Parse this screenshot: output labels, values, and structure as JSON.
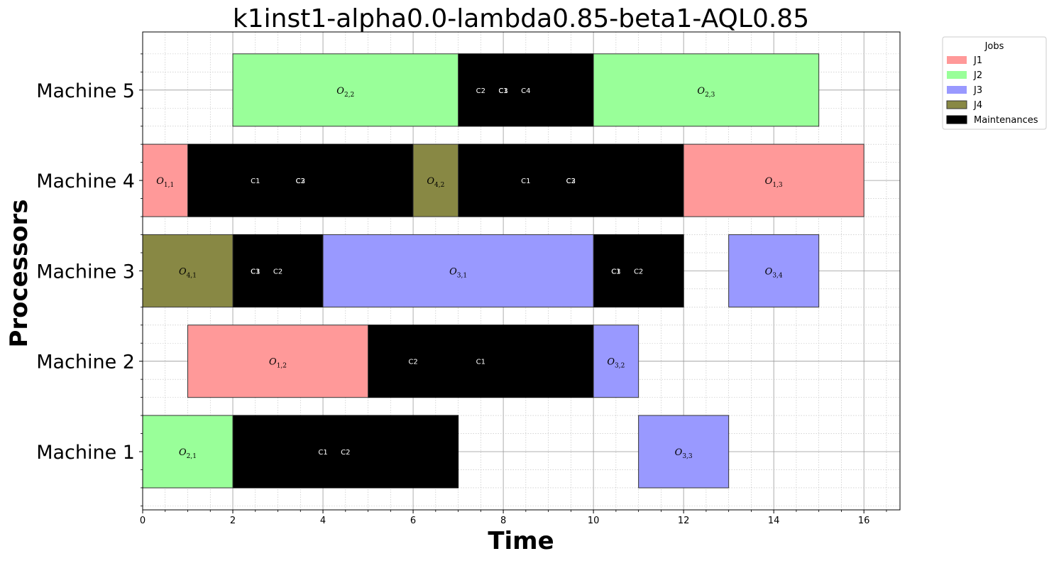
{
  "chart_data": {
    "type": "gantt",
    "title": "k1inst1-alpha0.0-lambda0.85-beta1-AQL0.85",
    "xlabel": "Time",
    "ylabel": "Processors",
    "xlim": [
      0,
      16.8
    ],
    "xticks": [
      "0",
      "2",
      "4",
      "6",
      "8",
      "10",
      "12",
      "14",
      "16"
    ],
    "grid": "major and minor",
    "legend_position": "outside-top-right",
    "machines": [
      "Machine 1",
      "Machine 2",
      "Machine 3",
      "Machine 4",
      "Machine 5"
    ],
    "legend": {
      "title": "Jobs",
      "items": [
        {
          "label": "J1",
          "color": "#ff9999"
        },
        {
          "label": "J2",
          "color": "#99ff99"
        },
        {
          "label": "J3",
          "color": "#9999ff"
        },
        {
          "label": "J4",
          "color": "#888844"
        },
        {
          "label": "Maintenances",
          "color": "#000000"
        }
      ]
    },
    "operations": [
      {
        "machine": "Machine 1",
        "start": 0,
        "end": 2,
        "job": "J2",
        "op": "O",
        "sub": "2,1"
      },
      {
        "machine": "Machine 1",
        "start": 11,
        "end": 13,
        "job": "J3",
        "op": "O",
        "sub": "3,3"
      },
      {
        "machine": "Machine 2",
        "start": 1,
        "end": 5,
        "job": "J1",
        "op": "O",
        "sub": "1,2"
      },
      {
        "machine": "Machine 2",
        "start": 10,
        "end": 11,
        "job": "J3",
        "op": "O",
        "sub": "3,2"
      },
      {
        "machine": "Machine 3",
        "start": 0,
        "end": 2,
        "job": "J4",
        "op": "O",
        "sub": "4,1"
      },
      {
        "machine": "Machine 3",
        "start": 4,
        "end": 10,
        "job": "J3",
        "op": "O",
        "sub": "3,1"
      },
      {
        "machine": "Machine 3",
        "start": 13,
        "end": 15,
        "job": "J3",
        "op": "O",
        "sub": "3,4"
      },
      {
        "machine": "Machine 4",
        "start": 0,
        "end": 1,
        "job": "J1",
        "op": "O",
        "sub": "1,1"
      },
      {
        "machine": "Machine 4",
        "start": 6,
        "end": 7,
        "job": "J4",
        "op": "O",
        "sub": "4,2"
      },
      {
        "machine": "Machine 4",
        "start": 12,
        "end": 16,
        "job": "J1",
        "op": "O",
        "sub": "1,3"
      },
      {
        "machine": "Machine 5",
        "start": 2,
        "end": 7,
        "job": "J2",
        "op": "O",
        "sub": "2,2"
      },
      {
        "machine": "Machine 5",
        "start": 10,
        "end": 15,
        "job": "J2",
        "op": "O",
        "sub": "2,3"
      }
    ],
    "maintenances": [
      {
        "machine": "Machine 1",
        "start": 2,
        "end": 7,
        "labels": [
          {
            "t": 4,
            "text": "C1"
          },
          {
            "t": 4.5,
            "text": "C2"
          }
        ]
      },
      {
        "machine": "Machine 2",
        "start": 5,
        "end": 10,
        "labels": [
          {
            "t": 6,
            "text": "C2"
          },
          {
            "t": 7.5,
            "text": "C1"
          }
        ]
      },
      {
        "machine": "Machine 3",
        "start": 2,
        "end": 4,
        "labels": [
          {
            "t": 2.5,
            "text": "C1"
          },
          {
            "t": 2.5,
            "text": "C3"
          },
          {
            "t": 3,
            "text": "C2"
          }
        ]
      },
      {
        "machine": "Machine 3",
        "start": 10,
        "end": 12,
        "labels": [
          {
            "t": 10.5,
            "text": "C1"
          },
          {
            "t": 10.5,
            "text": "C3"
          },
          {
            "t": 11,
            "text": "C2"
          }
        ]
      },
      {
        "machine": "Machine 4",
        "start": 1,
        "end": 6,
        "labels": [
          {
            "t": 2.5,
            "text": "C1"
          },
          {
            "t": 3.5,
            "text": "C2"
          },
          {
            "t": 3.5,
            "text": "C3"
          }
        ]
      },
      {
        "machine": "Machine 4",
        "start": 7,
        "end": 12,
        "labels": [
          {
            "t": 8.5,
            "text": "C1"
          },
          {
            "t": 9.5,
            "text": "C2"
          },
          {
            "t": 9.5,
            "text": "C3"
          }
        ]
      },
      {
        "machine": "Machine 5",
        "start": 7,
        "end": 10,
        "labels": [
          {
            "t": 7.5,
            "text": "C2"
          },
          {
            "t": 8,
            "text": "C1"
          },
          {
            "t": 8,
            "text": "C3"
          },
          {
            "t": 8.5,
            "text": "C4"
          }
        ]
      }
    ]
  }
}
